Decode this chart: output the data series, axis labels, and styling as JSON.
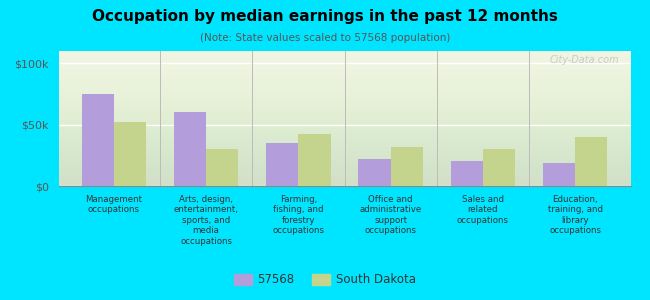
{
  "title": "Occupation by median earnings in the past 12 months",
  "subtitle": "(Note: State values scaled to 57568 population)",
  "categories": [
    "Management\noccupations",
    "Arts, design,\nentertainment,\nsports, and\nmedia\noccupations",
    "Farming,\nfishing, and\nforestry\noccupations",
    "Office and\nadministrative\nsupport\noccupations",
    "Sales and\nrelated\noccupations",
    "Education,\ntraining, and\nlibrary\noccupations"
  ],
  "values_57568": [
    75000,
    60000,
    35000,
    22000,
    20000,
    19000
  ],
  "values_sd": [
    52000,
    30000,
    42000,
    32000,
    30000,
    40000
  ],
  "bar_color_57568": "#b39ddb",
  "bar_color_sd": "#c5d48c",
  "background_color": "#00e5ff",
  "ylim": [
    0,
    110000
  ],
  "yticks": [
    0,
    50000,
    100000
  ],
  "ytick_labels": [
    "$0",
    "$50k",
    "$100k"
  ],
  "legend_label_57568": "57568",
  "legend_label_sd": "South Dakota",
  "watermark": "City-Data.com"
}
